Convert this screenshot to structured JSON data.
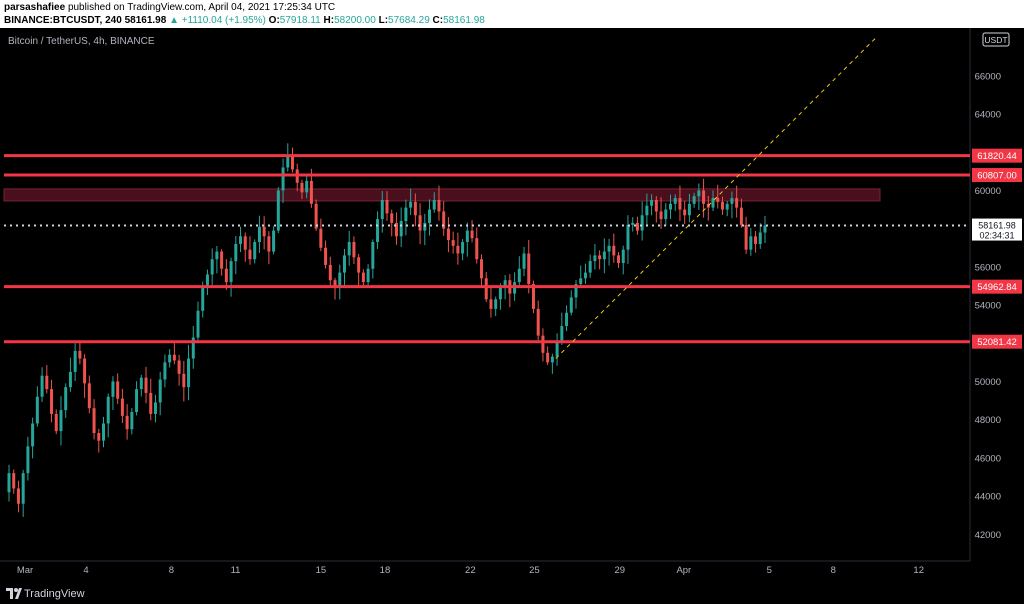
{
  "header": {
    "author": "parsashafiee",
    "published_text": "published on TradingView.com, April 04, 2021 17:25:34 UTC",
    "symbol_line": "BINANCE:BTCUSDT, 240",
    "last": "58161.98",
    "change": "▲ +1110.04 (+1.95%)",
    "o_label": "O:",
    "o_value": "57918.11",
    "h_label": "H:",
    "h_value": "58200.00",
    "l_label": "L:",
    "l_value": "57684.29",
    "c_label": "C:",
    "c_value": "58161.98"
  },
  "chart_data": {
    "type": "candlestick",
    "title": "Bitcoin / TetherUS, 4h, BINANCE",
    "currency_badge": "USDT",
    "ylim": [
      40600,
      68400
    ],
    "y_ticks": [
      42000,
      44000,
      46000,
      48000,
      50000,
      52000,
      54000,
      56000,
      58000,
      60000,
      62000,
      64000,
      66000
    ],
    "x_ticks": [
      "Mar",
      "4",
      "8",
      "11",
      "15",
      "18",
      "22",
      "25",
      "29",
      "Apr",
      "5",
      "8",
      "12"
    ],
    "levels": [
      {
        "price": 61820.44,
        "label": "61820.44"
      },
      {
        "price": 60807.0,
        "label": "60807.00"
      },
      {
        "price": 54962.84,
        "label": "54962.84"
      },
      {
        "price": 52081.42,
        "label": "52081.42"
      }
    ],
    "resistance_zone": [
      59450,
      60080
    ],
    "last_price": {
      "value": 58161.98,
      "label": "58161.98",
      "countdown": "02:34:31"
    },
    "trendline": {
      "from": {
        "date": "Mar 26",
        "price": 51200
      },
      "to": {
        "date": "Apr 10",
        "price": 68000
      }
    },
    "closes": [
      45200,
      44400,
      43600,
      45200,
      46600,
      47800,
      49200,
      50300,
      49600,
      48300,
      47400,
      48500,
      49700,
      50500,
      51600,
      51200,
      49900,
      48600,
      47300,
      46900,
      47800,
      49200,
      50000,
      49100,
      48200,
      47500,
      48400,
      49600,
      50200,
      49400,
      48300,
      48900,
      50100,
      51000,
      51400,
      51100,
      50400,
      49700,
      51200,
      52300,
      53700,
      54900,
      55600,
      56400,
      56800,
      55900,
      55200,
      56300,
      57200,
      57600,
      56900,
      56400,
      57300,
      58100,
      57600,
      56800,
      57900,
      60000,
      61200,
      61800,
      61100,
      60400,
      59900,
      60500,
      59300,
      58000,
      57000,
      56100,
      55300,
      54900,
      55700,
      56600,
      57300,
      56500,
      55700,
      55200,
      55900,
      57300,
      58500,
      59500,
      58800,
      58300,
      57600,
      58400,
      59100,
      59400,
      58700,
      57900,
      58300,
      59000,
      59500,
      58900,
      58000,
      57400,
      57100,
      56700,
      57300,
      57900,
      57500,
      56400,
      55400,
      54300,
      53800,
      54300,
      54900,
      55300,
      54600,
      55200,
      55900,
      56700,
      55100,
      53800,
      52400,
      51500,
      51000,
      51300,
      52100,
      52900,
      53600,
      54400,
      55100,
      55400,
      55700,
      56300,
      56600,
      56400,
      56800,
      57100,
      56600,
      56200,
      56900,
      58200,
      58300,
      57900,
      58700,
      59200,
      59500,
      58900,
      58500,
      59000,
      59300,
      59600,
      59000,
      58700,
      59300,
      59700,
      60000,
      59300,
      59100,
      59600,
      59400,
      59000,
      59300,
      59600,
      59100,
      58200,
      56900,
      57600,
      57200,
      57800,
      58161.98
    ]
  }
}
